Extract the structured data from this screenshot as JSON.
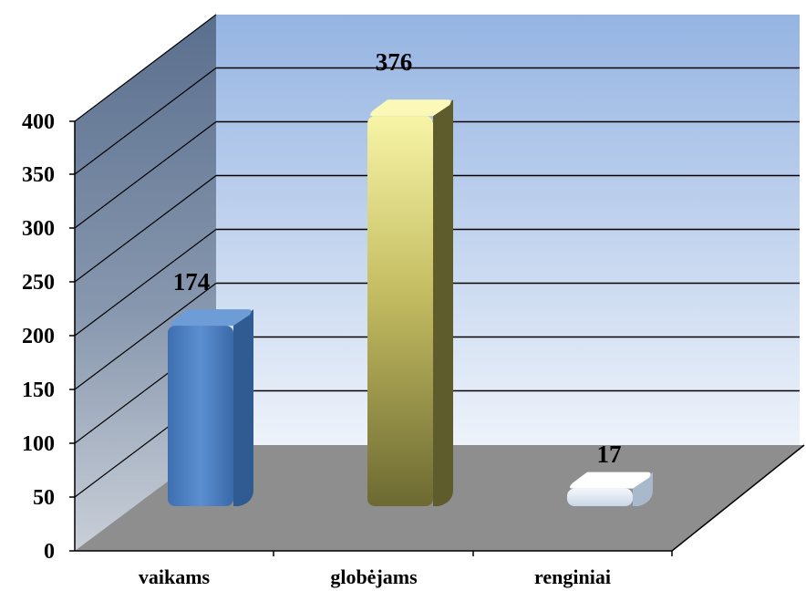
{
  "chart_data": {
    "type": "bar",
    "categories": [
      "vaikams",
      "globėjams",
      "renginiai"
    ],
    "values": [
      174,
      376,
      17
    ],
    "data_labels": [
      "174",
      "376",
      "17"
    ],
    "ylim": [
      0,
      400
    ],
    "yticks": [
      "0",
      "50",
      "100",
      "150",
      "200",
      "250",
      "300",
      "350",
      "400"
    ],
    "grid": true,
    "style": "3d-column",
    "colors": [
      "#4a7fc1",
      "#c8c26a",
      "#dbe6f2"
    ],
    "wall_color": "#9db8e2",
    "floor_color": "#8c8c8c"
  }
}
